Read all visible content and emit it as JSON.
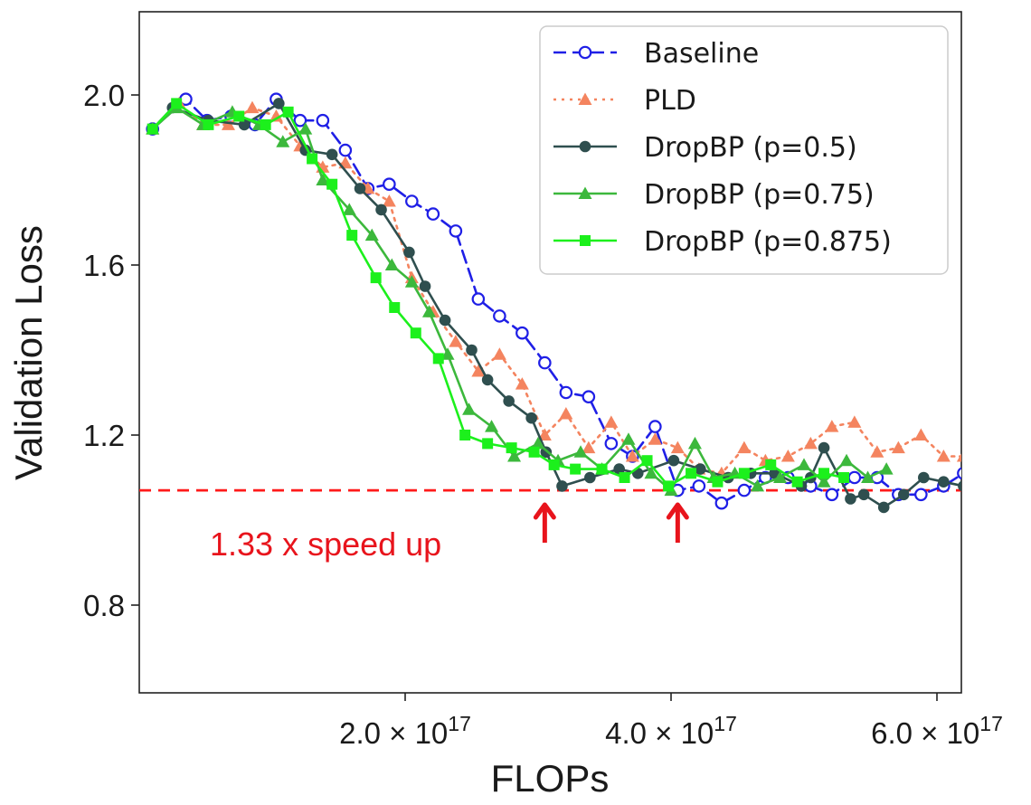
{
  "chart_data": {
    "type": "line",
    "title": "",
    "xlabel": "FLOPs",
    "ylabel": "Validation Loss",
    "xlim": [
      0.0,
      6.2e+17
    ],
    "ylim": [
      0.62,
      2.2
    ],
    "xticks": [
      {
        "value": 2e+17,
        "mantissa": "2.0",
        "times": "×",
        "base": "10",
        "exp": "17"
      },
      {
        "value": 4e+17,
        "mantissa": "4.0",
        "times": "×",
        "base": "10",
        "exp": "17"
      },
      {
        "value": 6e+17,
        "mantissa": "6.0",
        "times": "×",
        "base": "10",
        "exp": "17"
      }
    ],
    "yticks": [
      {
        "value": 0.8,
        "label": "0.8"
      },
      {
        "value": 1.2,
        "label": "1.2"
      },
      {
        "value": 1.6,
        "label": "1.6"
      },
      {
        "value": 2.0,
        "label": "2.0"
      }
    ],
    "grid": false,
    "legend_position": "top-right",
    "series": [
      {
        "name": "Baseline",
        "color": "#1f1fe6",
        "style": "dashed",
        "marker": "open-circle",
        "x": [
          1e+16,
          3.5e+16,
          5.1e+16,
          6.9e+16,
          8.7e+16,
          1.03e+17,
          1.21e+17,
          1.38e+17,
          1.55e+17,
          1.72e+17,
          1.88e+17,
          2.05e+17,
          2.21e+17,
          2.38e+17,
          2.55e+17,
          2.71e+17,
          2.88e+17,
          3.05e+17,
          3.21e+17,
          3.38e+17,
          3.55e+17,
          3.71e+17,
          3.88e+17,
          4.05e+17,
          4.21e+17,
          4.38e+17,
          4.55e+17,
          4.71e+17,
          4.88e+17,
          5.05e+17,
          5.21e+17,
          5.38e+17,
          5.55e+17,
          5.71e+17,
          5.88e+17,
          6.05e+17,
          6.2e+17
        ],
        "y": [
          1.92,
          1.99,
          1.94,
          1.95,
          1.93,
          1.99,
          1.94,
          1.94,
          1.87,
          1.78,
          1.79,
          1.75,
          1.72,
          1.68,
          1.52,
          1.48,
          1.44,
          1.37,
          1.3,
          1.29,
          1.18,
          1.15,
          1.22,
          1.07,
          1.08,
          1.04,
          1.07,
          1.1,
          1.1,
          1.08,
          1.06,
          1.1,
          1.1,
          1.06,
          1.06,
          1.08,
          1.11
        ]
      },
      {
        "name": "PLD",
        "color": "#f4845f",
        "style": "dotted",
        "marker": "triangle",
        "x": [
          1e+16,
          3e+16,
          4.8e+16,
          6.7e+16,
          8.5e+16,
          1.03e+17,
          1.21e+17,
          1.38e+17,
          1.55e+17,
          1.72e+17,
          1.88e+17,
          2.05e+17,
          2.21e+17,
          2.38e+17,
          2.55e+17,
          2.71e+17,
          2.88e+17,
          3.05e+17,
          3.21e+17,
          3.38e+17,
          3.55e+17,
          3.71e+17,
          3.88e+17,
          4.05e+17,
          4.21e+17,
          4.38e+17,
          4.55e+17,
          4.71e+17,
          4.88e+17,
          5.05e+17,
          5.21e+17,
          5.38e+17,
          5.55e+17,
          5.71e+17,
          5.88e+17,
          6.05e+17,
          6.2e+17
        ],
        "y": [
          1.92,
          1.98,
          1.93,
          1.93,
          1.97,
          1.95,
          1.88,
          1.83,
          1.84,
          1.78,
          1.75,
          1.57,
          1.49,
          1.42,
          1.35,
          1.39,
          1.32,
          1.2,
          1.25,
          1.17,
          1.23,
          1.15,
          1.19,
          1.17,
          1.12,
          1.11,
          1.17,
          1.14,
          1.15,
          1.18,
          1.22,
          1.23,
          1.16,
          1.17,
          1.2,
          1.15,
          1.15
        ]
      },
      {
        "name": "DropBP (p=0.5)",
        "color": "#2f4f4f",
        "style": "solid",
        "marker": "filled-circle",
        "x": [
          1e+16,
          2.5e+16,
          5.2e+16,
          7.9e+16,
          1.05e+17,
          1.25e+17,
          1.45e+17,
          1.66e+17,
          1.82e+17,
          2.03e+17,
          2.15e+17,
          2.3e+17,
          2.5e+17,
          2.62e+17,
          2.78e+17,
          2.95e+17,
          3.06e+17,
          3.18e+17,
          3.39e+17,
          3.61e+17,
          3.75e+17,
          4.02e+17,
          4.22e+17,
          4.43e+17,
          4.6e+17,
          4.78e+17,
          4.98e+17,
          5.05e+17,
          5.15e+17,
          5.35e+17,
          5.45e+17,
          5.6e+17,
          5.75e+17,
          5.9e+17,
          6.05e+17,
          6.2e+17
        ],
        "y": [
          1.92,
          1.97,
          1.94,
          1.93,
          1.98,
          1.87,
          1.86,
          1.78,
          1.73,
          1.63,
          1.55,
          1.47,
          1.4,
          1.33,
          1.28,
          1.24,
          1.16,
          1.08,
          1.1,
          1.12,
          1.11,
          1.14,
          1.12,
          1.1,
          1.11,
          1.11,
          1.08,
          1.1,
          1.17,
          1.05,
          1.06,
          1.03,
          1.06,
          1.1,
          1.09,
          1.08
        ]
      },
      {
        "name": "DropBP (p=0.75)",
        "color": "#3cb83c",
        "style": "solid",
        "marker": "triangle",
        "x": [
          1e+16,
          2.8e+16,
          4.8e+16,
          7e+16,
          9e+16,
          1.08e+17,
          1.25e+17,
          1.38e+17,
          1.58e+17,
          1.75e+17,
          1.9e+17,
          2.05e+17,
          2.18e+17,
          2.32e+17,
          2.48e+17,
          2.65e+17,
          2.82e+17,
          3e+17,
          3.15e+17,
          3.32e+17,
          3.48e+17,
          3.68e+17,
          3.85e+17,
          4e+17,
          4.18e+17,
          4.32e+17,
          4.48e+17,
          4.65e+17,
          4.82e+17,
          5e+17,
          5.15e+17,
          5.32e+17,
          5.48e+17,
          5.62e+17
        ],
        "y": [
          1.92,
          1.97,
          1.93,
          1.96,
          1.93,
          1.89,
          1.92,
          1.8,
          1.73,
          1.67,
          1.6,
          1.56,
          1.49,
          1.39,
          1.26,
          1.22,
          1.15,
          1.18,
          1.14,
          1.16,
          1.12,
          1.19,
          1.11,
          1.07,
          1.18,
          1.1,
          1.11,
          1.08,
          1.1,
          1.13,
          1.09,
          1.14,
          1.1,
          1.12
        ]
      },
      {
        "name": "DropBP (p=0.875)",
        "color": "#1cf01c",
        "style": "solid",
        "marker": "square",
        "x": [
          1e+16,
          2.8e+16,
          5.2e+16,
          7.5e+16,
          9.5e+16,
          1.12e+17,
          1.3e+17,
          1.45e+17,
          1.6e+17,
          1.78e+17,
          1.92e+17,
          2.08e+17,
          2.25e+17,
          2.45e+17,
          2.62e+17,
          2.8e+17,
          2.97e+17,
          3.12e+17,
          3.28e+17,
          3.48e+17,
          3.65e+17,
          3.82e+17,
          3.98e+17,
          4.15e+17,
          4.35e+17,
          4.55e+17,
          4.75e+17,
          4.95e+17,
          5.15e+17,
          5.3e+17
        ],
        "y": [
          1.92,
          1.98,
          1.93,
          1.95,
          1.93,
          1.96,
          1.85,
          1.79,
          1.67,
          1.57,
          1.5,
          1.44,
          1.38,
          1.2,
          1.18,
          1.17,
          1.16,
          1.13,
          1.12,
          1.12,
          1.1,
          1.14,
          1.08,
          1.11,
          1.09,
          1.11,
          1.13,
          1.09,
          1.11,
          1.1
        ]
      }
    ],
    "reference_line": {
      "y": 1.07,
      "color": "#ff1a1a",
      "style": "dashed"
    },
    "annotations": [
      {
        "text": "1.33 x speed up",
        "color": "#e8141c"
      },
      {
        "arrow_x": 3.05e+17,
        "color": "#e8141c"
      },
      {
        "arrow_x": 4.05e+17,
        "color": "#e8141c"
      }
    ]
  }
}
